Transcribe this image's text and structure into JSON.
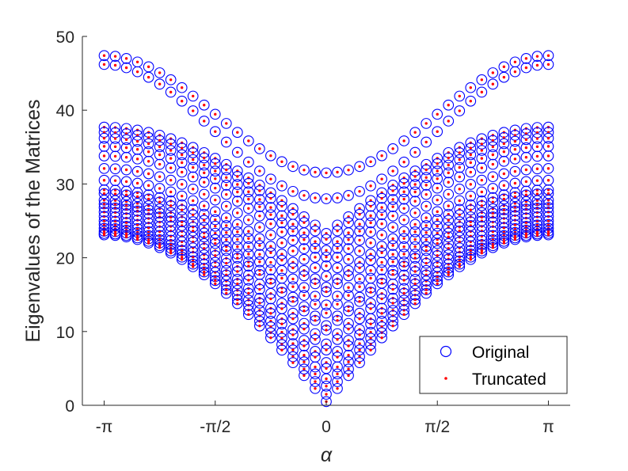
{
  "chart_data": {
    "type": "scatter",
    "title": "",
    "xlabel": "α",
    "ylabel": "Eigenvalues of the Matrices",
    "xlim": [
      -3.45,
      3.45
    ],
    "ylim": [
      0,
      50
    ],
    "x_ticks": [
      {
        "value": -3.14159,
        "label": "-π"
      },
      {
        "value": -1.5708,
        "label": "-π/2"
      },
      {
        "value": 0,
        "label": "0"
      },
      {
        "value": 1.5708,
        "label": "π/2"
      },
      {
        "value": 3.14159,
        "label": "π"
      }
    ],
    "y_ticks": [
      0,
      10,
      20,
      30,
      40,
      50
    ],
    "grid": false,
    "legend_position": "bottom-right",
    "n_alpha_samples": 41,
    "series": [
      {
        "name": "Original",
        "marker": "open-circle",
        "color": "#0000ff"
      },
      {
        "name": "Truncated",
        "marker": "dot",
        "color": "#ff0000"
      }
    ],
    "bands": [
      {
        "id": "upper-1",
        "value_at_pi": 47.4,
        "value_at_zero": 31.5
      },
      {
        "id": "upper-2",
        "value_at_pi": 46.2,
        "value_at_zero": 28.0
      },
      {
        "id": "mid-01",
        "value_at_pi": 37.7,
        "value_at_zero": 23.3
      },
      {
        "id": "mid-02",
        "value_at_pi": 37.0,
        "value_at_zero": 22.5
      },
      {
        "id": "mid-03",
        "value_at_pi": 36.2,
        "value_at_zero": 21.0
      },
      {
        "id": "mid-04",
        "value_at_pi": 35.1,
        "value_at_zero": 20.1
      },
      {
        "id": "mid-05",
        "value_at_pi": 33.8,
        "value_at_zero": 18.9
      },
      {
        "id": "mid-06",
        "value_at_pi": 32.1,
        "value_at_zero": 17.5
      },
      {
        "id": "mid-07",
        "value_at_pi": 30.5,
        "value_at_zero": 16.0
      },
      {
        "id": "mid-08",
        "value_at_pi": 29.2,
        "value_at_zero": 15.4
      },
      {
        "id": "mid-09",
        "value_at_pi": 28.7,
        "value_at_zero": 13.6
      },
      {
        "id": "mid-10",
        "value_at_pi": 27.8,
        "value_at_zero": 12.5
      },
      {
        "id": "mid-11",
        "value_at_pi": 27.3,
        "value_at_zero": 10.8
      },
      {
        "id": "mid-12",
        "value_at_pi": 26.8,
        "value_at_zero": 10.2
      },
      {
        "id": "mid-13",
        "value_at_pi": 26.2,
        "value_at_zero": 8.3
      },
      {
        "id": "mid-14",
        "value_at_pi": 25.6,
        "value_at_zero": 7.5
      },
      {
        "id": "mid-15",
        "value_at_pi": 25.0,
        "value_at_zero": 5.8
      },
      {
        "id": "mid-16",
        "value_at_pi": 24.5,
        "value_at_zero": 5.0
      },
      {
        "id": "mid-17",
        "value_at_pi": 24.0,
        "value_at_zero": 3.6
      },
      {
        "id": "mid-18",
        "value_at_pi": 23.6,
        "value_at_zero": 2.6
      },
      {
        "id": "mid-19",
        "value_at_pi": 23.3,
        "value_at_zero": 1.5
      },
      {
        "id": "mid-20",
        "value_at_pi": 23.1,
        "value_at_zero": 0.5
      }
    ]
  }
}
